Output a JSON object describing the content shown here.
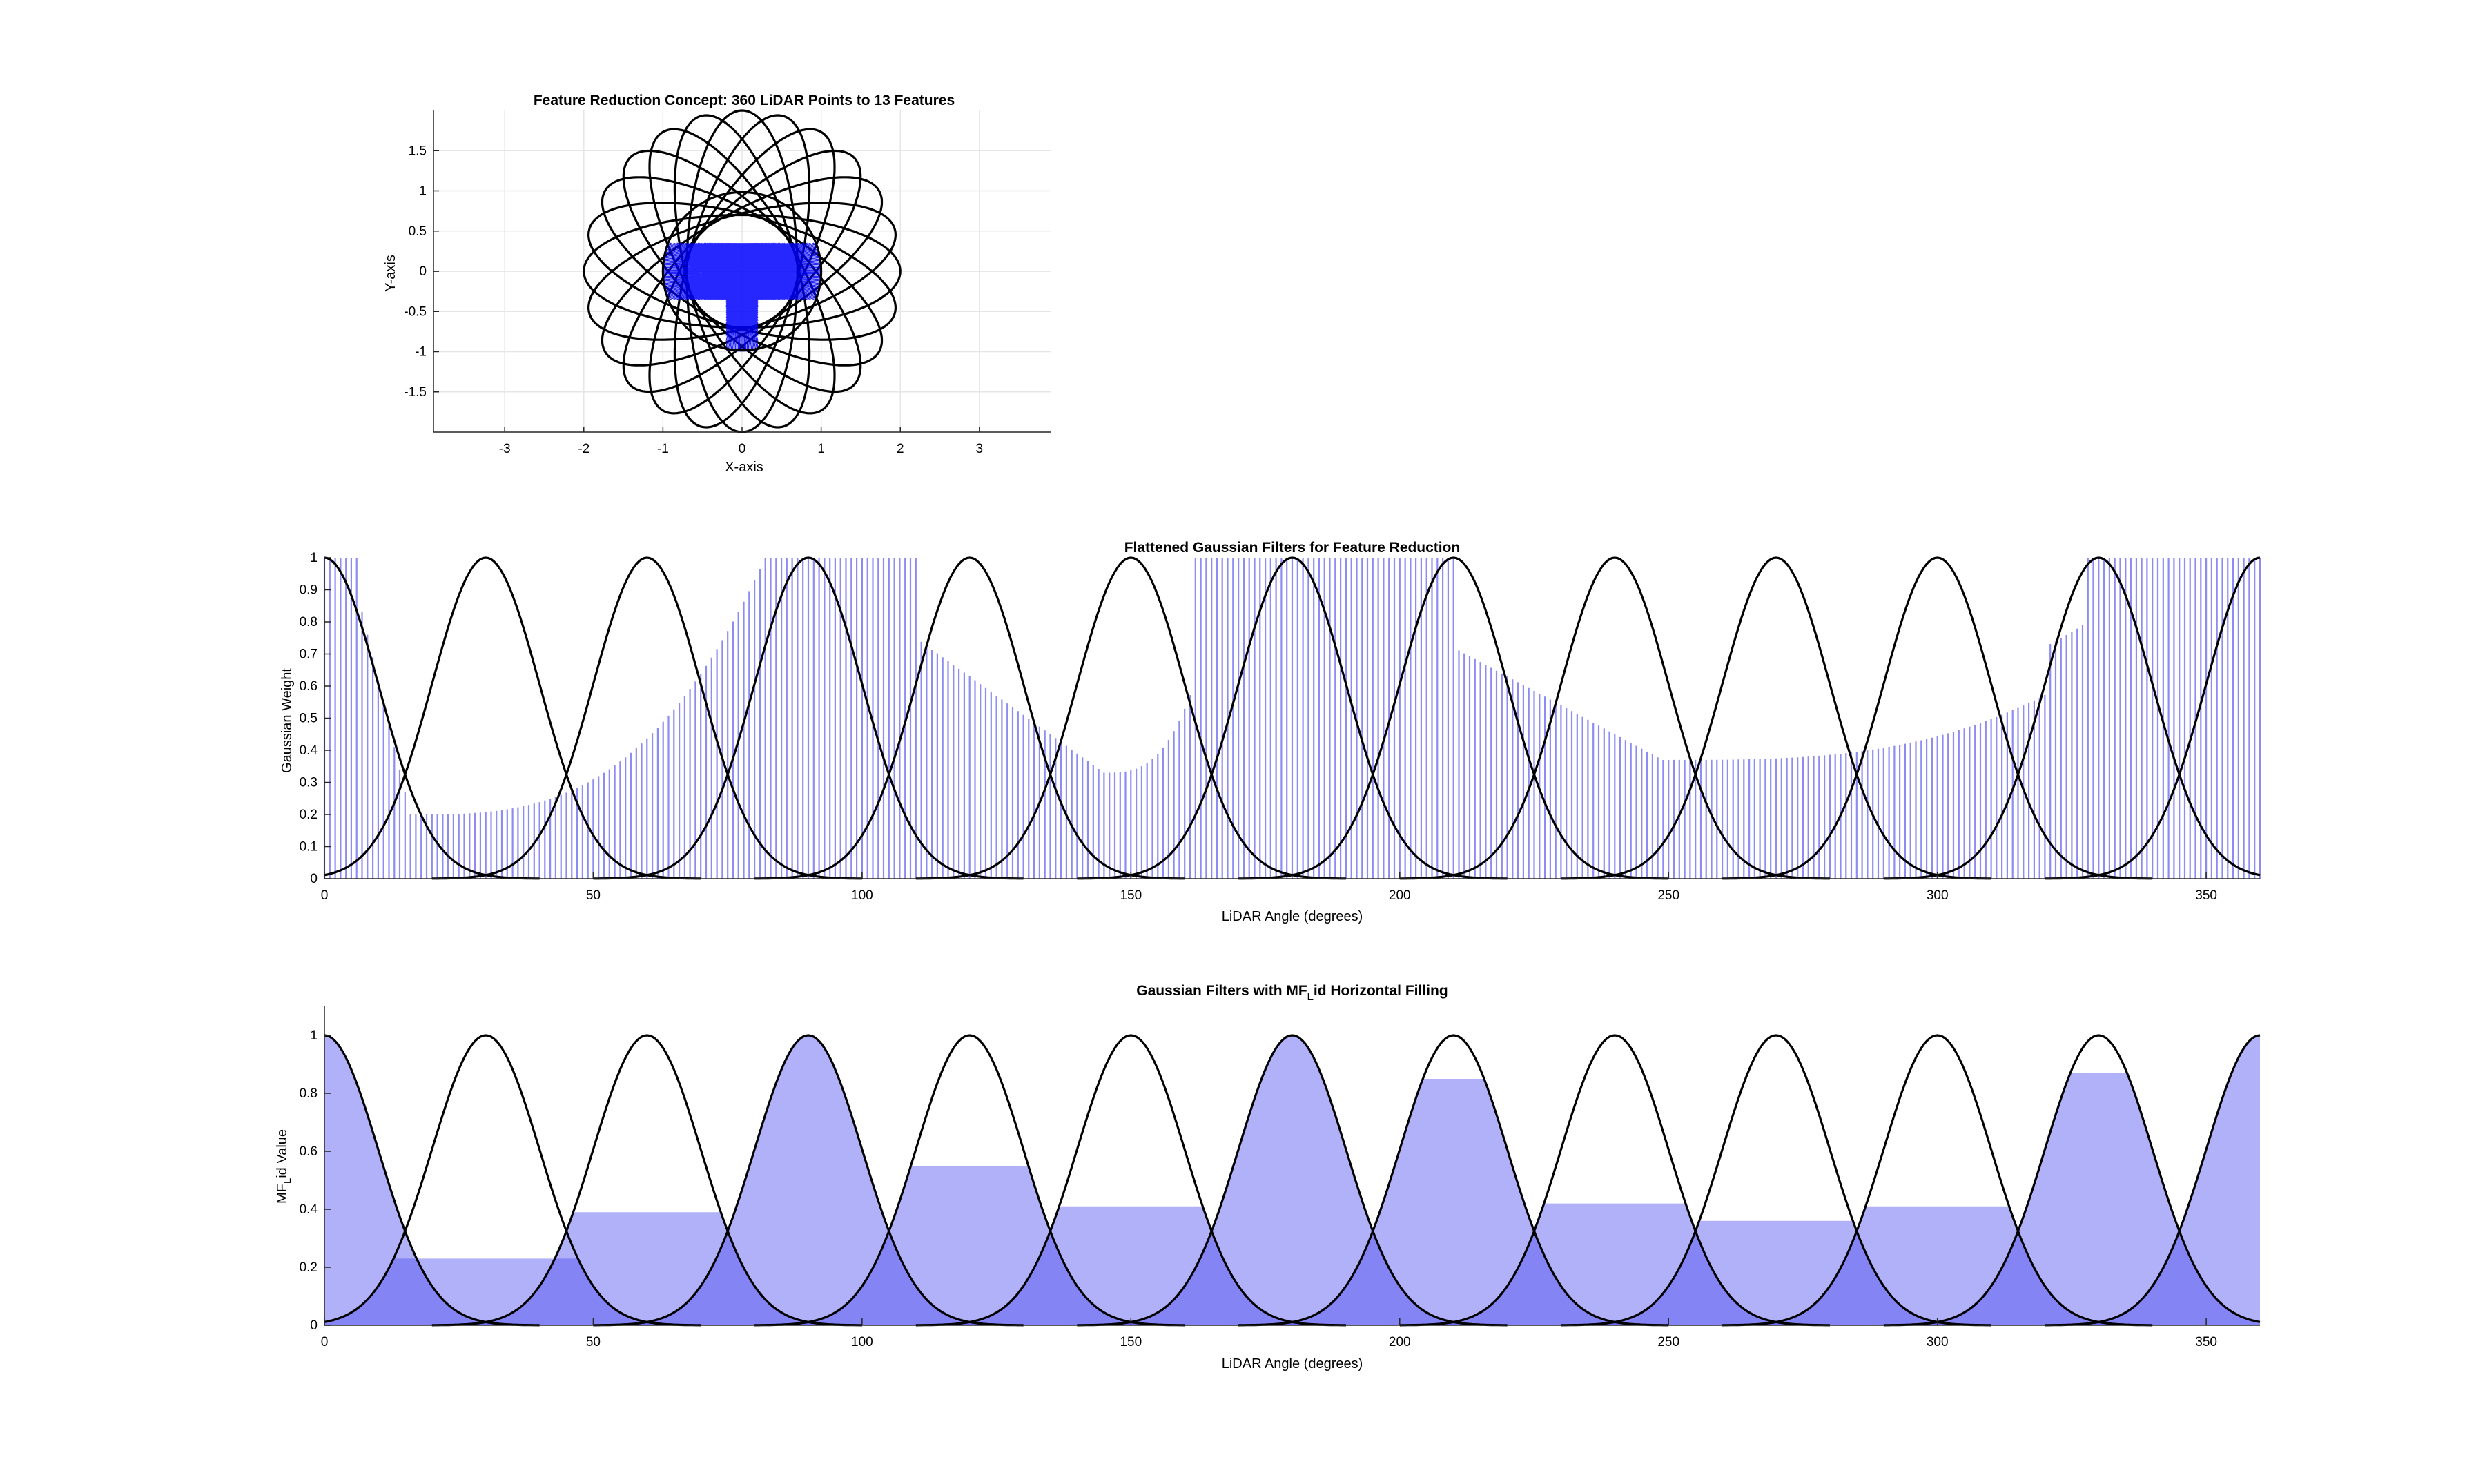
{
  "chart_data": [
    {
      "type": "line",
      "title": "Feature Reduction Concept: 360 LiDAR Points to 13 Features",
      "xlabel": "X-axis",
      "ylabel": "Y-axis",
      "xlim": [
        -3.9,
        3.9
      ],
      "ylim": [
        -2,
        2
      ],
      "xticks": [
        -3,
        -2,
        -1,
        0,
        1,
        2,
        3
      ],
      "yticks": [
        -1.5,
        -1,
        -0.5,
        0,
        0.5,
        1,
        1.5
      ],
      "grid": true,
      "features": 13,
      "lidar_points": 360,
      "description_series": [
        {
          "name": "",
          "kind": "unit-circle",
          "color": "#000000"
        },
        {
          "name": "",
          "kind": "13 feature ellipses",
          "color": "#000000"
        },
        {
          "name": "",
          "kind": "360 LiDAR rays",
          "color": "#0000ff"
        }
      ]
    },
    {
      "type": "bar",
      "title": "Flattened Gaussian Filters for Feature Reduction",
      "xlabel": "LiDAR Angle (degrees)",
      "ylabel": "Gaussian Weight",
      "xlim": [
        0,
        360
      ],
      "ylim": [
        0,
        1
      ],
      "xticks": [
        0,
        50,
        100,
        150,
        200,
        250,
        300,
        350
      ],
      "yticks": [
        0,
        0.1,
        0.2,
        0.3,
        0.4,
        0.5,
        0.6,
        0.7,
        0.8,
        0.9,
        1
      ],
      "gaussian_centers": [
        0,
        30,
        60,
        90,
        120,
        150,
        180,
        210,
        240,
        270,
        300,
        330,
        360
      ],
      "gaussian_sigma_deg": 10,
      "bar_color": "#8c8cf2",
      "curve_color": "#000000"
    },
    {
      "type": "area",
      "title": "Gaussian Filters with MF_Lid Horizontal Filling",
      "xlabel": "LiDAR Angle (degrees)",
      "ylabel": "MF_Lid Value",
      "xlim": [
        0,
        360
      ],
      "ylim": [
        0,
        1.1
      ],
      "xticks": [
        0,
        50,
        100,
        150,
        200,
        250,
        300,
        350
      ],
      "yticks": [
        0,
        0.2,
        0.4,
        0.6,
        0.8,
        1
      ],
      "centers": [
        0,
        30,
        60,
        90,
        120,
        150,
        180,
        210,
        240,
        270,
        300,
        330,
        360
      ],
      "mf_lid_values": [
        1.0,
        0.23,
        0.39,
        1.0,
        0.55,
        0.41,
        1.0,
        0.85,
        0.42,
        0.36,
        0.41,
        0.87,
        1.0
      ],
      "fill_color": "#b0b0fa",
      "overlap_color": "#7878ee"
    }
  ]
}
